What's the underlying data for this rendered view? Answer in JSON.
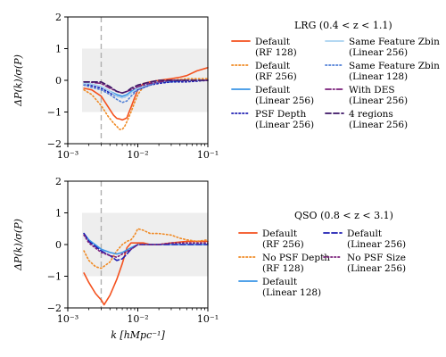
{
  "colors": {
    "band": "#eeeeee",
    "marker_line": "#b0b0b0",
    "orange": "#f4511e",
    "orange_dot": "#f08a24",
    "blue": "#3a95e6",
    "navy": "#1f1fb3",
    "lightblue": "#a9d3f0",
    "midblue": "#4f7fd6",
    "purple": "#7a1f7a",
    "darkpurple": "#3d1466"
  },
  "chart_data": [
    {
      "type": "line",
      "xscale": "log",
      "xlim": [
        0.001,
        0.1
      ],
      "ylim": [
        -2,
        2
      ],
      "xlabel": "",
      "ylabel": "ΔP(k)/σ(P)",
      "xticks": [
        {
          "value": 0.001,
          "label": "10⁻³"
        },
        {
          "value": 0.01,
          "label": "10⁻²"
        },
        {
          "value": 0.1,
          "label": "10⁻¹"
        }
      ],
      "yticks": [
        {
          "value": -2,
          "label": "−2"
        },
        {
          "value": -1,
          "label": "−1"
        },
        {
          "value": 0,
          "label": "0"
        },
        {
          "value": 1,
          "label": "1"
        },
        {
          "value": 2,
          "label": "2"
        }
      ],
      "band": [
        -1,
        1
      ],
      "vline": 0.003,
      "legend_title": "LRG (0.4 < z < 1.1)",
      "legend_position": "right",
      "series": [
        {
          "name": "Default\n(RF 128)",
          "color": "orange",
          "style": "solid",
          "x": [
            0.0017,
            0.0022,
            0.003,
            0.0038,
            0.0045,
            0.005,
            0.0055,
            0.006,
            0.0065,
            0.007,
            0.0075,
            0.008,
            0.009,
            0.01,
            0.012,
            0.015,
            0.02,
            0.03,
            0.04,
            0.05,
            0.07,
            0.1
          ],
          "y": [
            -0.25,
            -0.3,
            -0.5,
            -0.85,
            -1.1,
            -1.2,
            -1.22,
            -1.25,
            -1.22,
            -1.18,
            -1.0,
            -0.85,
            -0.55,
            -0.3,
            -0.1,
            -0.05,
            0.0,
            0.05,
            0.1,
            0.15,
            0.3,
            0.4
          ]
        },
        {
          "name": "Default\n(RF 256)",
          "color": "orange_dot",
          "style": "dotted",
          "x": [
            0.0017,
            0.0022,
            0.003,
            0.0038,
            0.0045,
            0.005,
            0.0055,
            0.006,
            0.0065,
            0.007,
            0.008,
            0.009,
            0.01,
            0.012,
            0.015,
            0.02,
            0.03,
            0.05,
            0.1
          ],
          "y": [
            -0.3,
            -0.45,
            -0.8,
            -1.15,
            -1.35,
            -1.45,
            -1.55,
            -1.55,
            -1.45,
            -1.3,
            -1.0,
            -0.7,
            -0.45,
            -0.2,
            -0.1,
            -0.05,
            0.0,
            0.05,
            0.05
          ]
        },
        {
          "name": "Default\n(Linear 256)",
          "color": "blue",
          "style": "solid",
          "x": [
            0.0017,
            0.002,
            0.003,
            0.004,
            0.005,
            0.006,
            0.007,
            0.008,
            0.01,
            0.015,
            0.02,
            0.03,
            0.05,
            0.1
          ],
          "y": [
            -0.1,
            -0.1,
            -0.2,
            -0.35,
            -0.45,
            -0.5,
            -0.45,
            -0.35,
            -0.25,
            -0.1,
            -0.05,
            -0.05,
            0.0,
            0.0
          ]
        },
        {
          "name": "PSF Depth\n(Linear 256)",
          "color": "navy",
          "style": "dotted",
          "x": [
            0.0017,
            0.002,
            0.003,
            0.004,
            0.005,
            0.006,
            0.007,
            0.008,
            0.01,
            0.015,
            0.02,
            0.03,
            0.05,
            0.1
          ],
          "y": [
            -0.15,
            -0.15,
            -0.25,
            -0.4,
            -0.5,
            -0.55,
            -0.5,
            -0.4,
            -0.3,
            -0.15,
            -0.1,
            -0.05,
            -0.05,
            0.0
          ]
        },
        {
          "name": "Same Feature Zbin\n(Linear 256)",
          "color": "lightblue",
          "style": "solid",
          "x": [
            0.0017,
            0.002,
            0.003,
            0.004,
            0.005,
            0.006,
            0.007,
            0.008,
            0.01,
            0.015,
            0.02,
            0.03,
            0.05,
            0.1
          ],
          "y": [
            -0.1,
            -0.1,
            -0.2,
            -0.35,
            -0.5,
            -0.55,
            -0.5,
            -0.4,
            -0.25,
            -0.1,
            -0.05,
            0.0,
            0.0,
            0.0
          ]
        },
        {
          "name": "Same Feature Zbin\n(Linear 128)",
          "color": "midblue",
          "style": "dotted",
          "x": [
            0.0017,
            0.002,
            0.003,
            0.004,
            0.005,
            0.006,
            0.007,
            0.008,
            0.01,
            0.015,
            0.02,
            0.03,
            0.05,
            0.1
          ],
          "y": [
            -0.15,
            -0.2,
            -0.3,
            -0.45,
            -0.6,
            -0.7,
            -0.65,
            -0.5,
            -0.3,
            -0.15,
            -0.05,
            0.0,
            0.0,
            0.0
          ]
        },
        {
          "name": "With DES\n(Linear 256)",
          "color": "purple",
          "style": "dashdot",
          "x": [
            0.0017,
            0.002,
            0.003,
            0.004,
            0.005,
            0.006,
            0.007,
            0.008,
            0.01,
            0.015,
            0.02,
            0.03,
            0.05,
            0.1
          ],
          "y": [
            -0.05,
            -0.05,
            -0.1,
            -0.25,
            -0.35,
            -0.4,
            -0.35,
            -0.3,
            -0.2,
            -0.1,
            -0.05,
            0.0,
            0.0,
            0.0
          ]
        },
        {
          "name": "4 regions\n(Linear 256)",
          "color": "darkpurple",
          "style": "dashed",
          "x": [
            0.0017,
            0.002,
            0.003,
            0.004,
            0.005,
            0.006,
            0.007,
            0.008,
            0.01,
            0.015,
            0.02,
            0.03,
            0.05,
            0.1
          ],
          "y": [
            -0.05,
            -0.05,
            -0.05,
            -0.2,
            -0.35,
            -0.4,
            -0.35,
            -0.25,
            -0.15,
            -0.05,
            0.0,
            0.0,
            0.0,
            0.0
          ]
        }
      ]
    },
    {
      "type": "line",
      "xscale": "log",
      "xlim": [
        0.001,
        0.1
      ],
      "ylim": [
        -2,
        2
      ],
      "xlabel": "k [hMpc⁻¹]",
      "ylabel": "ΔP(k)/σ(P)",
      "xticks": [
        {
          "value": 0.001,
          "label": "10⁻³"
        },
        {
          "value": 0.01,
          "label": "10⁻²"
        },
        {
          "value": 0.1,
          "label": "10⁻¹"
        }
      ],
      "yticks": [
        {
          "value": -2,
          "label": "−2"
        },
        {
          "value": -1,
          "label": "−1"
        },
        {
          "value": 0,
          "label": "0"
        },
        {
          "value": 1,
          "label": "1"
        },
        {
          "value": 2,
          "label": "2"
        }
      ],
      "band": [
        -1,
        1
      ],
      "vline": 0.003,
      "legend_title": "QSO (0.8 < z < 3.1)",
      "legend_position": "right",
      "series": [
        {
          "name": "Default\n(RF 256)",
          "color": "orange",
          "style": "solid",
          "x": [
            0.0017,
            0.002,
            0.0025,
            0.003,
            0.0033,
            0.004,
            0.005,
            0.006,
            0.007,
            0.008,
            0.01,
            0.012,
            0.015,
            0.02,
            0.03,
            0.05,
            0.1
          ],
          "y": [
            -0.9,
            -1.2,
            -1.55,
            -1.75,
            -1.9,
            -1.6,
            -1.1,
            -0.6,
            -0.1,
            0.05,
            0.05,
            0.05,
            0.0,
            0.0,
            0.05,
            0.1,
            0.1
          ]
        },
        {
          "name": "No PSF Depth\n(RF 128)",
          "color": "orange_dot",
          "style": "dotted",
          "x": [
            0.0017,
            0.002,
            0.0025,
            0.003,
            0.004,
            0.005,
            0.006,
            0.007,
            0.008,
            0.009,
            0.01,
            0.012,
            0.015,
            0.02,
            0.03,
            0.04,
            0.05,
            0.07,
            0.1
          ],
          "y": [
            -0.2,
            -0.5,
            -0.7,
            -0.75,
            -0.55,
            -0.2,
            0.0,
            0.1,
            0.15,
            0.3,
            0.5,
            0.45,
            0.35,
            0.35,
            0.3,
            0.2,
            0.15,
            0.1,
            0.15
          ]
        },
        {
          "name": "Default\n(Linear 128)",
          "color": "blue",
          "style": "solid",
          "x": [
            0.0017,
            0.002,
            0.003,
            0.004,
            0.005,
            0.006,
            0.008,
            0.01,
            0.015,
            0.02,
            0.03,
            0.05,
            0.1
          ],
          "y": [
            0.35,
            0.15,
            -0.15,
            -0.25,
            -0.3,
            -0.25,
            -0.1,
            0.0,
            0.0,
            0.0,
            0.0,
            0.0,
            0.0
          ]
        },
        {
          "name": "Default\n(Linear 256)",
          "color": "navy",
          "style": "dashed",
          "x": [
            0.0017,
            0.002,
            0.003,
            0.004,
            0.005,
            0.006,
            0.007,
            0.008,
            0.01,
            0.015,
            0.02,
            0.03,
            0.05,
            0.1
          ],
          "y": [
            0.35,
            0.1,
            -0.2,
            -0.35,
            -0.5,
            -0.45,
            -0.3,
            -0.15,
            0.0,
            0.0,
            0.0,
            0.0,
            0.0,
            0.0
          ]
        },
        {
          "name": "No PSF Size\n(Linear 256)",
          "color": "purple",
          "style": "dotted",
          "x": [
            0.0017,
            0.002,
            0.003,
            0.004,
            0.005,
            0.006,
            0.008,
            0.01,
            0.015,
            0.02,
            0.03,
            0.05,
            0.1
          ],
          "y": [
            0.3,
            0.05,
            -0.25,
            -0.35,
            -0.4,
            -0.3,
            -0.15,
            0.0,
            0.0,
            0.0,
            0.05,
            0.05,
            0.05
          ]
        }
      ]
    }
  ]
}
